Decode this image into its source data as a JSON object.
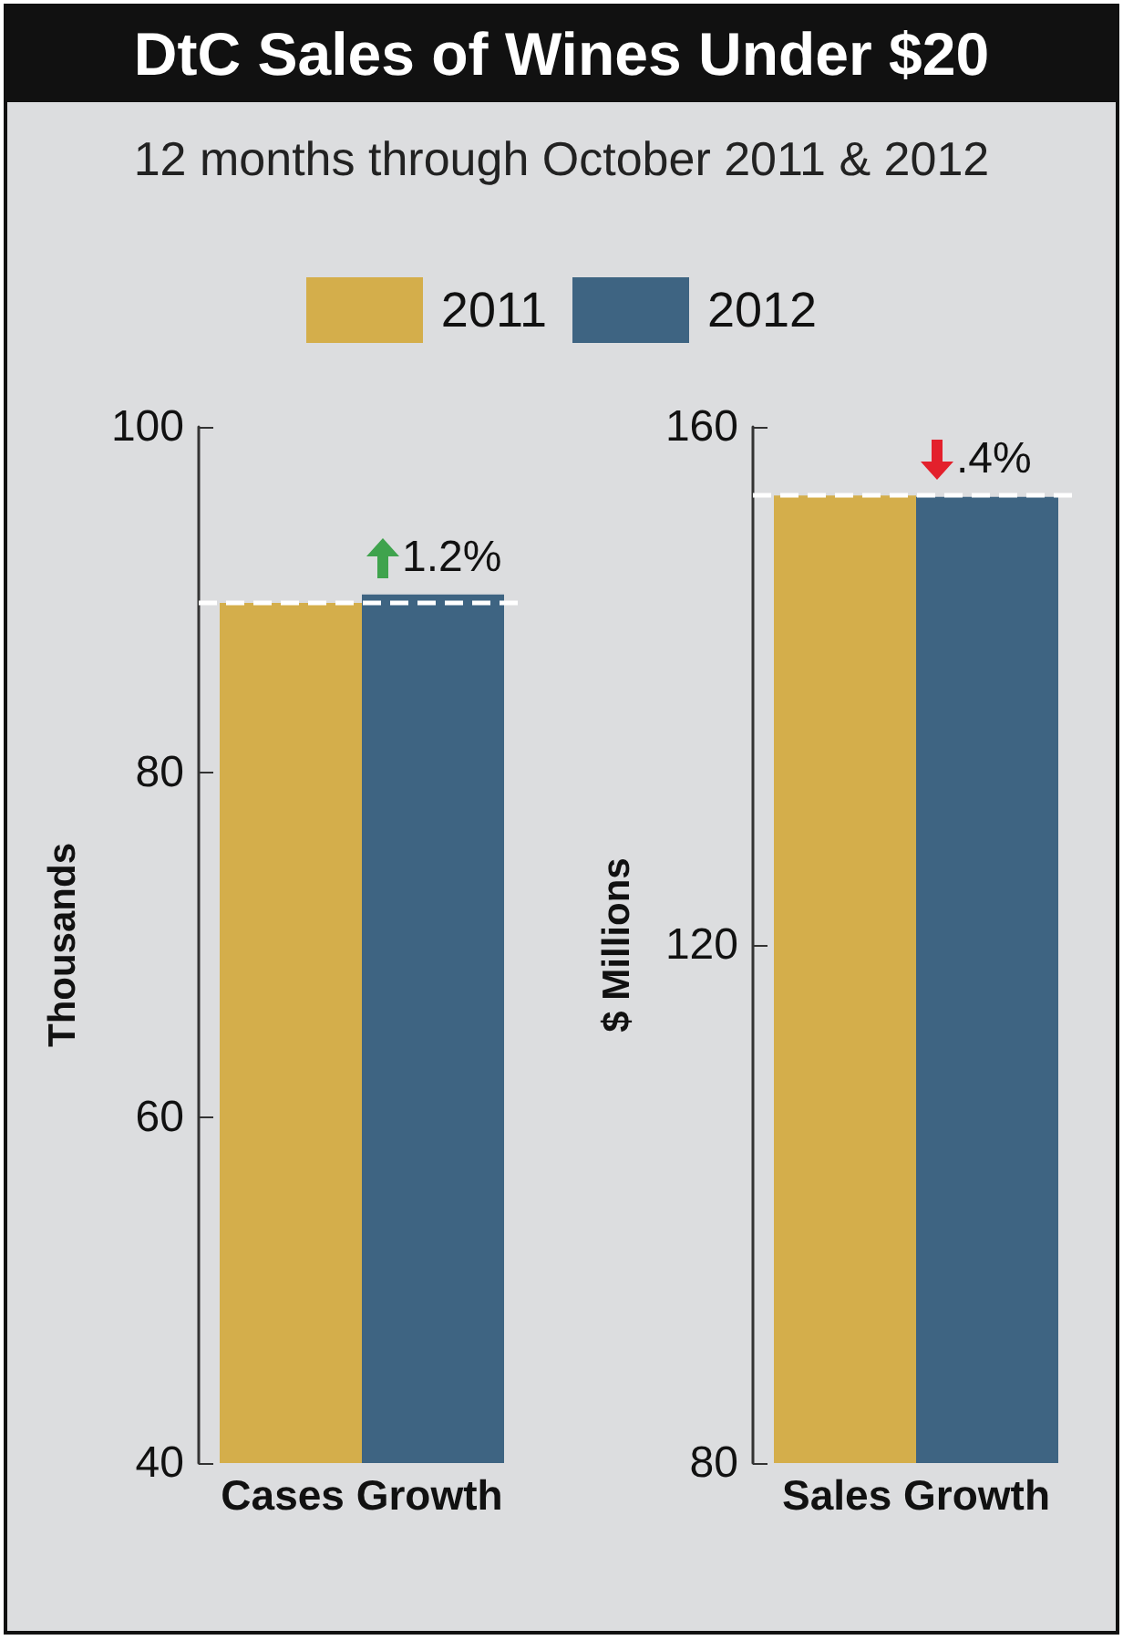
{
  "chart_data": [
    {
      "type": "bar",
      "title": "DtC Sales of Wines Under $20",
      "subtitle": "12 months through October 2011 & 2012",
      "ylabel": "Thousands",
      "categories": [
        "Cases Growth"
      ],
      "series": [
        {
          "name": "2011",
          "color": "#d4ae4b",
          "values": [
            89.8
          ]
        },
        {
          "name": "2012",
          "color": "#3e6482",
          "values": [
            90.3
          ]
        }
      ],
      "ylim": [
        40,
        100
      ],
      "yticks": [
        40,
        60,
        80,
        100
      ],
      "legend": "top",
      "ref_lines": [
        {
          "axis": "y",
          "value": 89.8,
          "color": "#ffffff",
          "line_style": "dashed"
        }
      ],
      "annotations": [
        {
          "text": "1.2%",
          "x": "Cases Growth",
          "y": 90.3
        }
      ]
    },
    {
      "type": "bar",
      "ylabel": "$ Millions",
      "categories": [
        "Sales Growth"
      ],
      "series": [
        {
          "name": "2011",
          "color": "#d4ae4b",
          "values": [
            154.7
          ]
        },
        {
          "name": "2012",
          "color": "#3e6482",
          "values": [
            154.6
          ]
        }
      ],
      "ylim": [
        80,
        160
      ],
      "yticks": [
        80,
        120,
        160
      ],
      "ref_lines": [
        {
          "axis": "y",
          "value": 154.7,
          "color": "#ffffff",
          "line_style": "dashed"
        }
      ],
      "annotations": [
        {
          "text": ".4%",
          "x": "Sales Growth",
          "y": 154.6
        }
      ]
    }
  ]
}
